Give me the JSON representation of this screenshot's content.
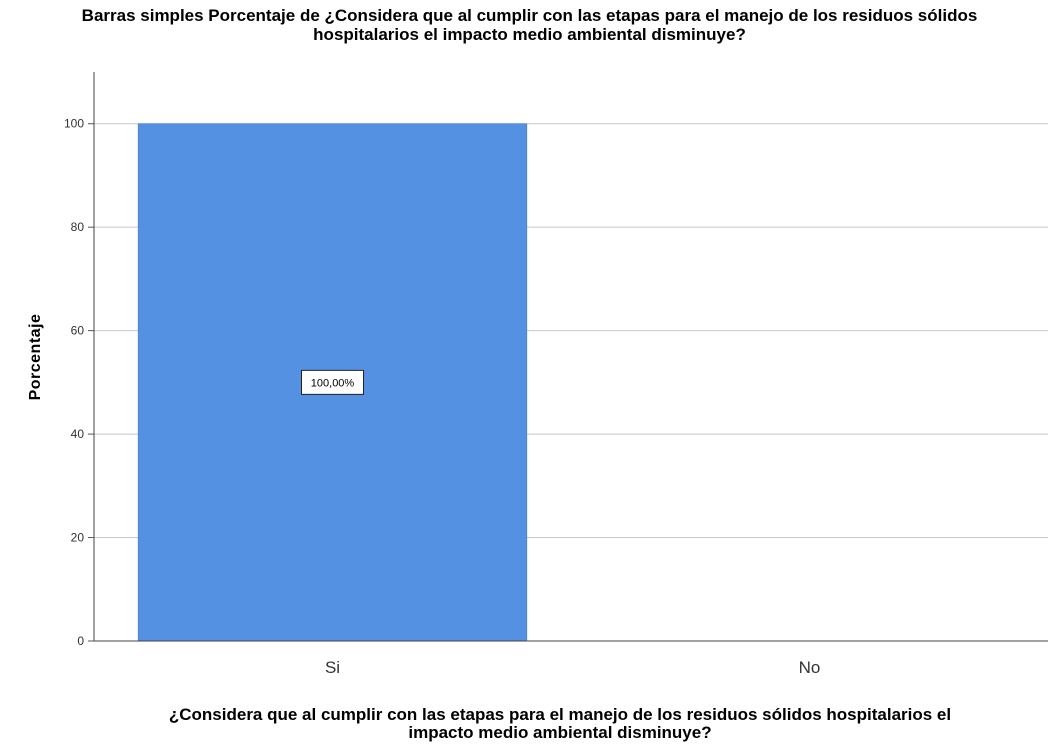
{
  "chart_data": {
    "type": "bar",
    "title": "Barras simples Porcentaje de ¿Considera que al cumplir con las etapas para el manejo de los residuos sólidos hospitalarios el impacto medio ambiental disminuye?",
    "title_lines": [
      "Barras simples Porcentaje de ¿Considera que al cumplir con las etapas para el manejo de los residuos sólidos",
      "hospitalarios el impacto medio ambiental disminuye?"
    ],
    "xlabel": "¿Considera que al cumplir con las etapas para el manejo de los residuos sólidos hospitalarios el impacto medio ambiental disminuye?",
    "xlabel_lines": [
      "¿Considera que al cumplir con las etapas para el manejo de los residuos sólidos hospitalarios el",
      "impacto medio ambiental disminuye?"
    ],
    "ylabel": "Porcentaje",
    "categories": [
      "Si",
      "No"
    ],
    "values": [
      100,
      0
    ],
    "data_labels": [
      "100,00%",
      ""
    ],
    "ylim": [
      0,
      110
    ],
    "yticks": [
      0,
      20,
      40,
      60,
      80,
      100
    ],
    "grid": true,
    "bar_color": "#5491e2"
  }
}
